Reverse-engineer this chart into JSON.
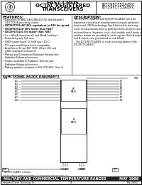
{
  "title_line1": "FAST CMOS",
  "title_line2": "OCTAL REGISTERED",
  "title_line3": "TRANSCEIVERS",
  "part1": "IDT29FCT52A/B/C",
  "part2": "IDT29FCT53A/B/C",
  "section_features": "FEATURES:",
  "section_description": "DESCRIPTION:",
  "features_lines": [
    "• Equivalent to AMD's Am29B520/530 and National's",
    "   54FCT520A pin-configuration",
    "• IDT29FCT52xSO 35% equivalent to F4S for speed",
    "• IDT29FCT52xS-30% faster than F4S7",
    "• IDT29FCT52xC 6% faster than F4S7",
    "• Icc = 80mA (commercial) and 88mA (military)",
    "• Powered by only 5pF max",
    "• CMOS power levels (2.5mW typ, 125°C)",
    "• TTL input and Output levels compatible",
    "• Available in 28-pin DIP, SOIC, 28 pin LCC and",
    "   JLBEC standard (enhanced)",
    "• Military and Commercial Radiation Tolerant and",
    "   Radiation Enhanced versions",
    "• Product available in Radiation Tolerant and",
    "   Radiation Enhanced versions",
    "• Military product-compliant to MIL-STD-883, Class B"
  ],
  "bold_features": [
    2,
    3,
    4
  ],
  "desc_lines": [
    "The IDT29FCT52A/B/C and IDT29FCT53A/B/C are 8-bit",
    "registered transceivers manufactured using an advanced",
    "dual-metal CMOS technology. Two 8-bit back-to-back reg-",
    "isters simultaneously drive in both directions between two bidi-",
    "rectional buses. Separate clock, clock enable and 8 mode output",
    "enable controls are provided for each register. Both A-outputs",
    "and B outputs are guaranteed to sink 64mA.",
    "   The IDT29FCT53A/B/C is a non-inverting option of the",
    "IDT29FCT52A/B/C."
  ],
  "functional_block": "FUNCTIONAL BLOCK DIAGRAM*1",
  "left_sigs": [
    "A1",
    "A2",
    "A3",
    "A4",
    "A5",
    "A6",
    "A7",
    "A8"
  ],
  "right_sigs": [
    "B1",
    "B2",
    "B3",
    "B4",
    "B5",
    "B6",
    "B7",
    "B8"
  ],
  "left_ctrl": [
    "OEA",
    "CLKA",
    "CEAB"
  ],
  "right_ctrl": [
    "OEB",
    "CLKB",
    "CEBA"
  ],
  "bottom_bar": "MILITARY AND COMMERCIAL TEMPERATURE RANGES",
  "bottom_date": "MAY 1996",
  "footer_left": "Integrated Device Technology, Inc.",
  "footer_mid": "1/4",
  "footer_right": "DSS-1088/11",
  "note": "* IDT29FCT52A/B/C is shown"
}
